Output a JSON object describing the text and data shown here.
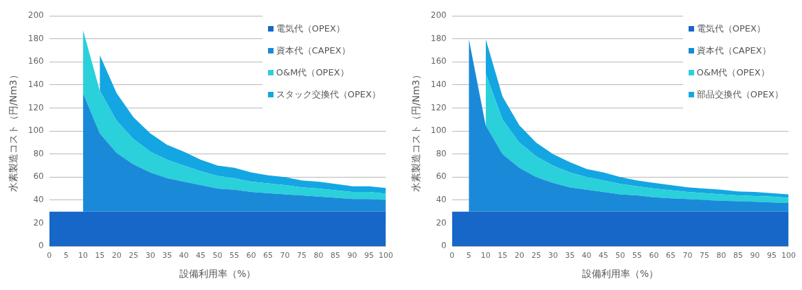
{
  "chart_data": [
    {
      "type": "area",
      "stacked": true,
      "xlabel": "設備利用率（%）",
      "ylabel": "水素製造コスト（円/Nm3）",
      "categories": [
        "0",
        "5",
        "10",
        "15",
        "20",
        "25",
        "30",
        "35",
        "40",
        "45",
        "50",
        "55",
        "60",
        "65",
        "70",
        "75",
        "80",
        "85",
        "90",
        "95",
        "100"
      ],
      "series": [
        {
          "name": "電気代（OPEX）",
          "color": "#1767c8",
          "values": [
            30,
            30,
            30,
            30,
            30,
            30,
            30,
            30,
            30,
            30,
            30,
            30,
            30,
            30,
            30,
            30,
            30,
            30,
            30,
            30,
            30
          ]
        },
        {
          "name": "資本代（CAPEX）",
          "color": "#1a8ad8",
          "values": [
            null,
            null,
            103,
            68,
            51,
            41,
            34,
            29,
            26,
            23,
            20,
            19,
            17,
            16,
            15,
            14,
            13,
            12,
            11,
            11,
            10
          ]
        },
        {
          "name": "O&M代（OPEX）",
          "color": "#2ad0da",
          "values": [
            null,
            null,
            55,
            37,
            28,
            22,
            18,
            16,
            14,
            12,
            11,
            10,
            9,
            8.5,
            8,
            7,
            7,
            6.5,
            6,
            6,
            5.5
          ]
        },
        {
          "name": "スタック交換代（OPEX）",
          "color": "#14a6e2",
          "values": [
            null,
            null,
            null,
            31,
            24,
            19,
            16,
            13,
            12,
            10,
            9,
            9,
            8,
            7,
            7,
            6,
            6,
            5.5,
            5,
            5,
            5
          ]
        }
      ],
      "ylim": [
        0,
        200
      ],
      "yticks": [
        0,
        20,
        40,
        60,
        80,
        100,
        120,
        140,
        160,
        180,
        200
      ],
      "grid": "y",
      "legend": "top right"
    },
    {
      "type": "area",
      "stacked": true,
      "xlabel": "設備利用率（%）",
      "ylabel": "水素製造コスト（円/Nm3）",
      "categories": [
        "0",
        "5",
        "10",
        "15",
        "20",
        "25",
        "30",
        "35",
        "40",
        "45",
        "50",
        "55",
        "60",
        "65",
        "70",
        "75",
        "80",
        "85",
        "90",
        "95",
        "100"
      ],
      "series": [
        {
          "name": "電気代（OPEX）",
          "color": "#1767c8",
          "values": [
            30,
            30,
            30,
            30,
            30,
            30,
            30,
            30,
            30,
            30,
            30,
            30,
            30,
            30,
            30,
            30,
            30,
            30,
            30,
            30,
            30
          ]
        },
        {
          "name": "資本代（CAPEX）",
          "color": "#1a8ad8",
          "values": [
            null,
            150,
            75,
            50,
            38,
            30,
            25,
            21,
            19,
            17,
            15,
            14,
            12.5,
            11.5,
            11,
            10,
            9.5,
            9,
            8.5,
            8,
            7.5
          ]
        },
        {
          "name": "O&M代（OPEX）",
          "color": "#2ad0da",
          "values": [
            null,
            null,
            45,
            30,
            22,
            18,
            15,
            13,
            11,
            10,
            9,
            8,
            7.5,
            7,
            6,
            6,
            5.5,
            5,
            5,
            5,
            4.5
          ]
        },
        {
          "name": "部品交換代（OPEX）",
          "color": "#14a6e2",
          "values": [
            null,
            null,
            30,
            20,
            15,
            12,
            10,
            9,
            7,
            7,
            6,
            5,
            5,
            4.5,
            4,
            4,
            4,
            3.5,
            3.5,
            3,
            3
          ]
        }
      ],
      "ylim": [
        0,
        200
      ],
      "yticks": [
        0,
        20,
        40,
        60,
        80,
        100,
        120,
        140,
        160,
        180,
        200
      ],
      "grid": "y",
      "legend": "top right"
    }
  ]
}
